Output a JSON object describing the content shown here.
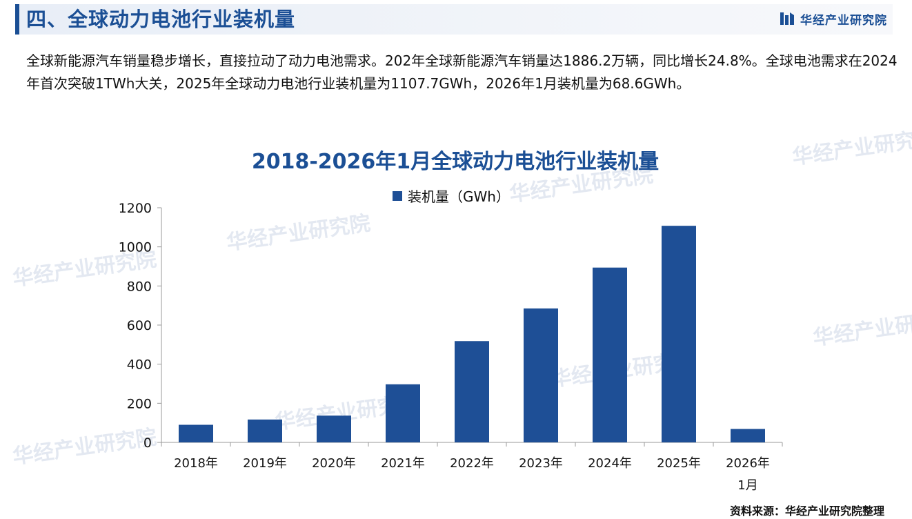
{
  "header": {
    "section_title": "四、全球动力电池行业装机量",
    "brand_name": "华经产业研究院"
  },
  "intro_text": "全球新能源汽车销量稳步增长，直接拉动了动力电池需求。202年全球新能源汽车销量达1886.2万辆，同比增长24.8%。全球电池需求在2024年首次突破1TWh大关，2025年全球动力电池行业装机量为1107.7GWh，2026年1月装机量为68.6GWh。",
  "watermark_text": "华经产业研究院",
  "source": "资料来源：华经产业研究院整理",
  "colors": {
    "primary": "#1b4f95",
    "bar": "#1e4f96",
    "axis": "#9a9a9a"
  },
  "chart_data": {
    "type": "bar",
    "title": "2018-2026年1月全球动力电池行业装机量",
    "categories": [
      "2018年",
      "2019年",
      "2020年",
      "2021年",
      "2022年",
      "2023年",
      "2024年",
      "2025年",
      "2026年\n1月"
    ],
    "series": [
      {
        "name": "装机量（GWh）",
        "values": [
          90,
          117,
          137,
          297,
          518,
          685,
          894,
          1107.7,
          68.6
        ]
      }
    ],
    "ylim": [
      0,
      1200
    ],
    "yticks": [
      0,
      200,
      400,
      600,
      800,
      1000,
      1200
    ],
    "grid": false,
    "legend_position": "top"
  }
}
